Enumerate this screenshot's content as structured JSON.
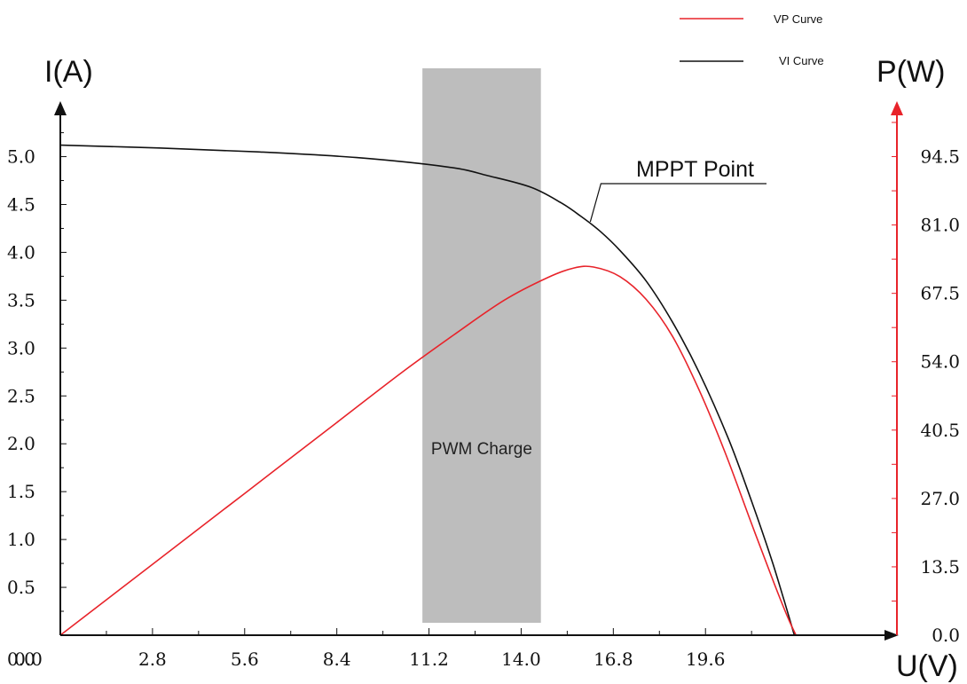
{
  "chart_data": {
    "type": "line",
    "legend": {
      "placement": "top-right",
      "entries": [
        {
          "label": "VP Curve",
          "color": "#e8232a"
        },
        {
          "label": "VI Curve",
          "color": "#111111"
        }
      ]
    },
    "x_axis": {
      "label": "U(V)",
      "range": [
        0,
        25.2
      ],
      "ticks": [
        0,
        2.8,
        5.6,
        8.4,
        11.2,
        14.0,
        16.8,
        19.6
      ],
      "tick_labels": [
        "0.0",
        "2.8",
        "5.6",
        "8.4",
        "11.2",
        "14.0",
        "16.8",
        "19.6"
      ]
    },
    "y_left_axis": {
      "label": "I(A)",
      "range": [
        0,
        5.45
      ],
      "ticks": [
        0.5,
        1.0,
        1.5,
        2.0,
        2.5,
        3.0,
        3.5,
        4.0,
        4.5,
        5.0
      ],
      "tick_labels": [
        "0.5",
        "1.0",
        "1.5",
        "2.0",
        "2.5",
        "3.0",
        "3.5",
        "4.0",
        "4.5",
        "5.0"
      ],
      "color": "#111111"
    },
    "y_right_axis": {
      "label": "P(W)",
      "range": [
        0,
        103
      ],
      "ticks": [
        0,
        13.5,
        27.0,
        40.5,
        54.0,
        67.5,
        81.0,
        94.5
      ],
      "tick_labels": [
        "0.0",
        "13.5",
        "27.0",
        "40.5",
        "54.0",
        "67.5",
        "81.0",
        "94.5"
      ],
      "color": "#e8232a"
    },
    "series": [
      {
        "name": "VI Curve",
        "axis": "left",
        "color": "#111111",
        "x": [
          0,
          3.0,
          6.0,
          9.0,
          11.8,
          13.0,
          14.3,
          15.2,
          15.8,
          16.4,
          17.0,
          17.8,
          18.6,
          19.4,
          20.3,
          21.0,
          21.6,
          22.0,
          22.3
        ],
        "y": [
          5.12,
          5.09,
          5.05,
          4.99,
          4.89,
          4.8,
          4.68,
          4.52,
          4.38,
          4.22,
          4.02,
          3.7,
          3.27,
          2.75,
          2.05,
          1.4,
          0.8,
          0.35,
          0.0
        ]
      },
      {
        "name": "VP Curve",
        "axis": "right",
        "color": "#e8232a",
        "x": [
          0,
          2.8,
          5.6,
          8.4,
          10.4,
          12.0,
          13.5,
          14.8,
          15.6,
          16.2,
          17.0,
          17.8,
          18.6,
          19.4,
          20.2,
          21.0,
          21.7,
          22.1,
          22.35
        ],
        "y": [
          0,
          14.0,
          28.0,
          42.0,
          52.0,
          59.5,
          66.2,
          70.6,
          72.5,
          72.7,
          70.8,
          66.3,
          59.0,
          48.5,
          36.0,
          22.0,
          10.0,
          3.5,
          0.0
        ]
      }
    ],
    "shaded_region": {
      "label": "PWM Charge",
      "x_from": 11.0,
      "x_to": 14.6,
      "color": "#bdbdbd"
    },
    "annotation": {
      "label": "MPPT Point",
      "x": 16.1,
      "y_current": 4.3
    }
  }
}
